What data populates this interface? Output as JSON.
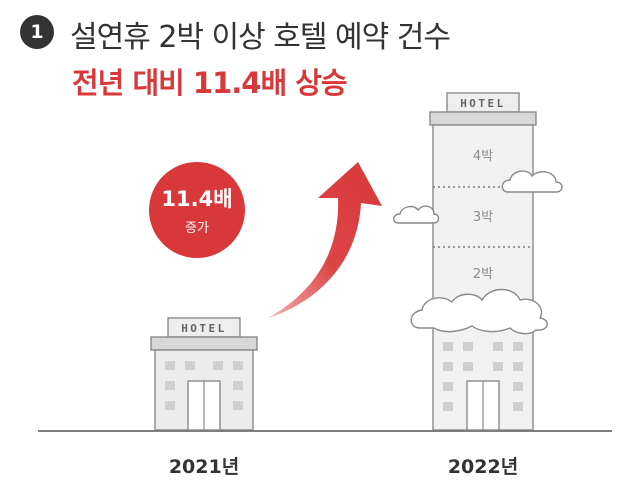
{
  "header": {
    "badge": "1",
    "title": "설연휴 2박 이상 호텔 예약 건수",
    "subtitle": "전년 대비 11.4배 상승"
  },
  "badge_circle": {
    "value": "11.4배",
    "caption": "증가"
  },
  "hotel_sign": "HOTEL",
  "floors": [
    "4박",
    "3박",
    "2박"
  ],
  "years": [
    "2021년",
    "2022년"
  ],
  "colors": {
    "accent": "#d9383a",
    "text": "#333333",
    "building": "#e4e4e4",
    "window": "#cfcfcf"
  }
}
